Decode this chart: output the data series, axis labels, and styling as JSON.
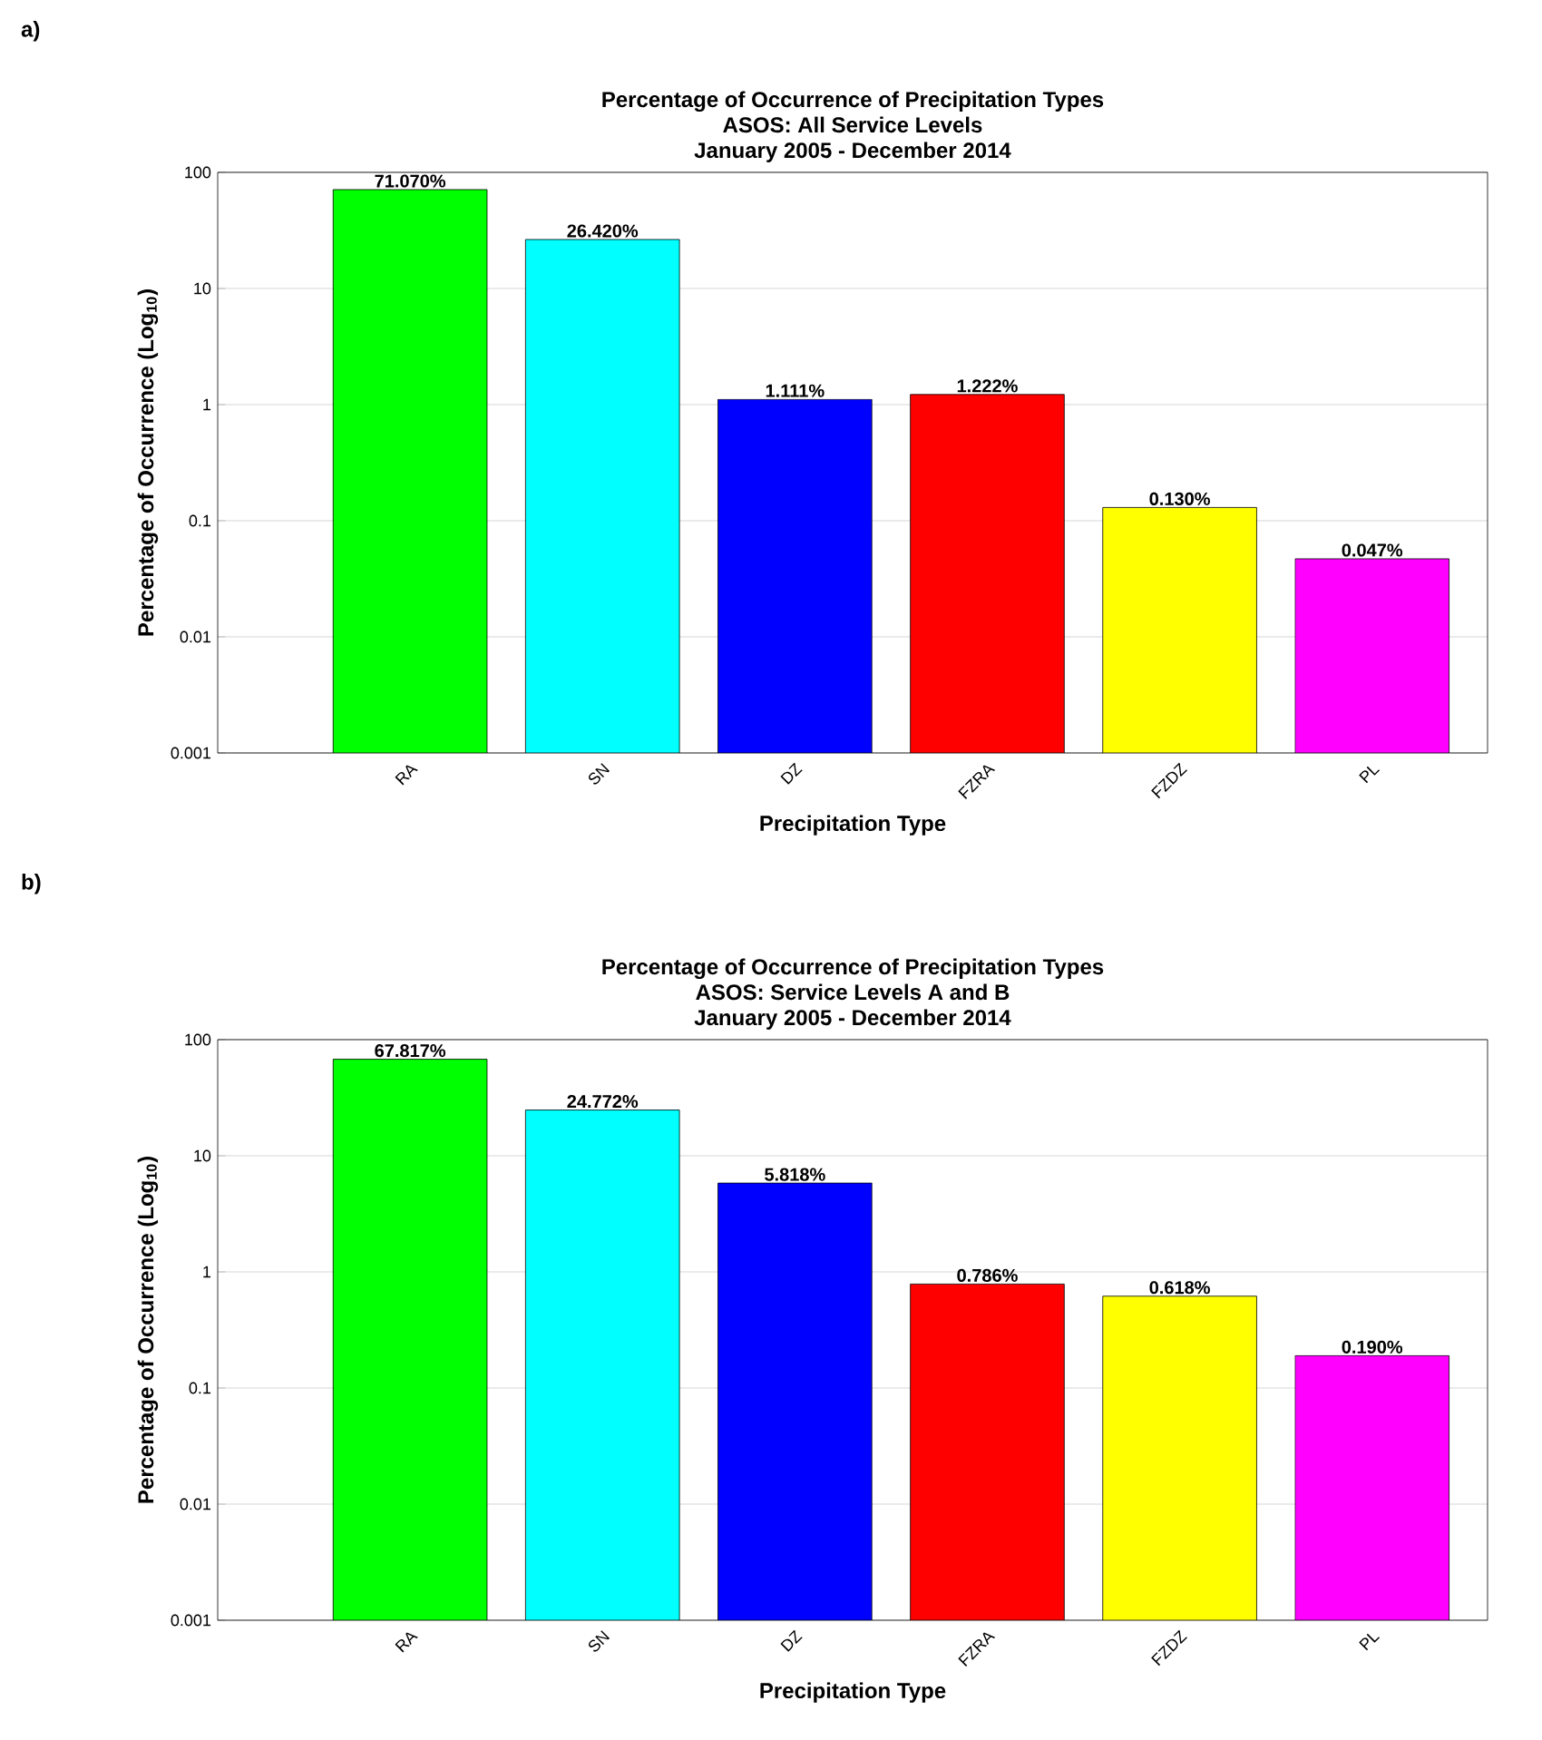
{
  "chart_data": [
    {
      "type": "bar",
      "title": "Percentage of Occurrence of Precipitation Types",
      "subtitle": "ASOS: All Service Levels",
      "annotations": [
        "a)",
        "January 2005 - December 2014"
      ],
      "xlabel": "Precipitation Type",
      "ylabel": "Percentage of Occurrence (Log$_{10}$)",
      "categories": [
        "RA",
        "SN",
        "DZ",
        "FZRA",
        "FZDZ",
        "PL"
      ],
      "values": [
        71.07,
        26.42,
        1.111,
        1.222,
        0.13,
        0.047
      ],
      "value_labels": [
        "71.070%",
        "26.420%",
        "1.111%",
        "1.222%",
        "0.130%",
        "0.047%"
      ],
      "colors": [
        "#00ff00",
        "#00ffff",
        "#0000ff",
        "#ff0000",
        "#ffff00",
        "#ff00ff"
      ],
      "log": "y",
      "ylim": [
        0.001,
        100
      ],
      "yticks": [
        0.001,
        0.01,
        0.1,
        1,
        10,
        100
      ],
      "grid": "y"
    },
    {
      "type": "bar",
      "title": "Percentage of Occurrence of Precipitation Types",
      "subtitle": "ASOS: Service Levels A and B",
      "annotations": [
        "b)",
        "January 2005 - December 2014"
      ],
      "xlabel": "Precipitation Type",
      "ylabel": "Percentage of Occurrence (Log$_{10}$)",
      "categories": [
        "RA",
        "SN",
        "DZ",
        "FZRA",
        "FZDZ",
        "PL"
      ],
      "values": [
        67.817,
        24.772,
        5.818,
        0.786,
        0.618,
        0.19
      ],
      "value_labels": [
        "67.817%",
        "24.772%",
        "5.818%",
        "0.786%",
        "0.618%",
        "0.190%"
      ],
      "colors": [
        "#00ff00",
        "#00ffff",
        "#0000ff",
        "#ff0000",
        "#ffff00",
        "#ff00ff"
      ],
      "log": "y",
      "ylim": [
        0.001,
        100
      ],
      "yticks": [
        0.001,
        0.01,
        0.1,
        1,
        10,
        100
      ],
      "grid": "y"
    }
  ]
}
